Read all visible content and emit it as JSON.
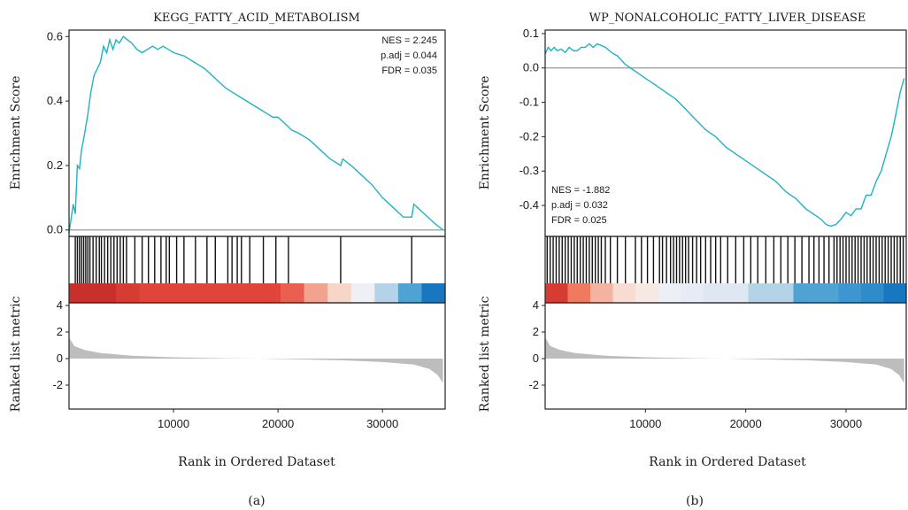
{
  "captions": [
    "(a)",
    "(b)"
  ],
  "colors": {
    "es_line": "#1fb2c4",
    "zero_line": "#9a9a9a",
    "frame": "#222222",
    "hit": "#111111",
    "metric_fill": "#bdbdbd"
  },
  "chart_data": [
    {
      "type": "line",
      "title": "KEGG_FATTY_ACID_METABOLISM",
      "xlabel": "Rank in Ordered Dataset",
      "ylabel": "Enrichment Score",
      "ylabel2": "Ranked list metric",
      "xlim": [
        0,
        36000
      ],
      "ylim": [
        -0.02,
        0.62
      ],
      "yticks": [
        0.0,
        0.2,
        0.4,
        0.6
      ],
      "ytick_labels": [
        "0.0",
        "0.2",
        "0.4",
        "0.6"
      ],
      "xticks": [
        10000,
        20000,
        30000
      ],
      "xtick_labels": [
        "10000",
        "20000",
        "30000"
      ],
      "metric_ylim": [
        -3.8,
        4.2
      ],
      "metric_yticks": [
        4,
        2,
        0,
        -2
      ],
      "metric_ytick_labels": [
        "4",
        "2",
        "0",
        "-2"
      ],
      "stats": [
        "NES = 2.245",
        "p.adj = 0.044",
        "FDR = 0.035"
      ],
      "stats_position": "top-right",
      "grid": false,
      "x": [
        0,
        400,
        600,
        800,
        1000,
        1200,
        1500,
        1800,
        2100,
        2400,
        2700,
        3000,
        3300,
        3600,
        3900,
        4200,
        4500,
        4800,
        5200,
        5600,
        6000,
        6500,
        7000,
        7500,
        8000,
        8500,
        9000,
        9500,
        10000,
        11000,
        12000,
        13000,
        14000,
        15000,
        15500,
        16000,
        16500,
        17000,
        18000,
        19000,
        19500,
        20000,
        21000,
        21300,
        22000,
        23000,
        24000,
        25000,
        26000,
        26200,
        27000,
        28000,
        29000,
        30000,
        31000,
        32000,
        32800,
        33000,
        34000,
        35000,
        35800
      ],
      "y": [
        -0.01,
        0.08,
        0.05,
        0.2,
        0.19,
        0.25,
        0.3,
        0.36,
        0.43,
        0.48,
        0.5,
        0.52,
        0.57,
        0.55,
        0.59,
        0.56,
        0.59,
        0.58,
        0.6,
        0.59,
        0.58,
        0.56,
        0.55,
        0.56,
        0.57,
        0.56,
        0.57,
        0.56,
        0.55,
        0.54,
        0.52,
        0.5,
        0.47,
        0.44,
        0.43,
        0.42,
        0.41,
        0.4,
        0.38,
        0.36,
        0.35,
        0.35,
        0.32,
        0.31,
        0.3,
        0.28,
        0.25,
        0.22,
        0.2,
        0.22,
        0.2,
        0.17,
        0.14,
        0.1,
        0.07,
        0.04,
        0.04,
        0.08,
        0.05,
        0.02,
        0.0
      ],
      "hit_positions": [
        600,
        800,
        1000,
        1200,
        1400,
        1600,
        1800,
        2000,
        2300,
        2600,
        2900,
        3100,
        3400,
        3700,
        4000,
        4300,
        4600,
        4900,
        5200,
        5500,
        6300,
        7000,
        7600,
        8200,
        8800,
        9300,
        9600,
        10300,
        11000,
        12100,
        13200,
        14000,
        15200,
        15600,
        16100,
        16500,
        17300,
        18600,
        19800,
        21000,
        26000,
        32800
      ],
      "color_band": [
        "#c9302c",
        "#c9302c",
        "#d73c33",
        "#e0443b",
        "#e0443b",
        "#e0443b",
        "#e0443b",
        "#e0443b",
        "#e0443b",
        "#ea6050",
        "#f2a390",
        "#f7d6ca",
        "#eef0f6",
        "#b5d3e6",
        "#4fa3d3",
        "#1877bf"
      ],
      "metric_curve": [
        [
          0,
          1.6
        ],
        [
          500,
          0.95
        ],
        [
          1500,
          0.65
        ],
        [
          3000,
          0.42
        ],
        [
          6000,
          0.22
        ],
        [
          10000,
          0.1
        ],
        [
          15000,
          0.03
        ],
        [
          18000,
          0.0
        ],
        [
          22000,
          -0.06
        ],
        [
          26000,
          -0.13
        ],
        [
          30000,
          -0.26
        ],
        [
          33000,
          -0.45
        ],
        [
          34500,
          -0.78
        ],
        [
          35300,
          -1.25
        ],
        [
          35800,
          -1.85
        ]
      ]
    },
    {
      "type": "line",
      "title": "WP_NONALCOHOLIC_FATTY_LIVER_DISEASE",
      "xlabel": "Rank in Ordered Dataset",
      "ylabel": "Enrichment Score",
      "ylabel2": "Ranked list metric",
      "xlim": [
        0,
        36000
      ],
      "ylim": [
        -0.49,
        0.11
      ],
      "yticks": [
        0.1,
        0.0,
        -0.1,
        -0.2,
        -0.3,
        -0.4
      ],
      "ytick_labels": [
        "0.1",
        "0.0",
        "-0.1",
        "-0.2",
        "-0.3",
        "-0.4"
      ],
      "xticks": [
        10000,
        20000,
        30000
      ],
      "xtick_labels": [
        "10000",
        "20000",
        "30000"
      ],
      "metric_ylim": [
        -3.8,
        4.2
      ],
      "metric_yticks": [
        4,
        2,
        0,
        -2
      ],
      "metric_ytick_labels": [
        "4",
        "2",
        "0",
        "-2"
      ],
      "stats": [
        "NES = -1.882",
        "p.adj = 0.032",
        "FDR = 0.025"
      ],
      "stats_position": "bottom-left",
      "grid": false,
      "x": [
        0,
        300,
        600,
        900,
        1200,
        1600,
        2000,
        2400,
        2800,
        3200,
        3600,
        4000,
        4400,
        4800,
        5200,
        5600,
        6000,
        6600,
        7200,
        8000,
        9000,
        10000,
        11000,
        12000,
        13000,
        14000,
        15000,
        16000,
        17000,
        18000,
        19000,
        20000,
        21000,
        22000,
        23000,
        24000,
        25000,
        26000,
        27000,
        27500,
        28000,
        28500,
        29000,
        29500,
        30000,
        30500,
        31000,
        31500,
        32000,
        32500,
        33000,
        33500,
        34000,
        34500,
        35000,
        35400,
        35800
      ],
      "y": [
        0.04,
        0.06,
        0.05,
        0.06,
        0.05,
        0.055,
        0.045,
        0.06,
        0.05,
        0.05,
        0.06,
        0.06,
        0.07,
        0.06,
        0.07,
        0.065,
        0.06,
        0.045,
        0.035,
        0.01,
        -0.01,
        -0.03,
        -0.05,
        -0.07,
        -0.09,
        -0.12,
        -0.15,
        -0.18,
        -0.2,
        -0.23,
        -0.25,
        -0.27,
        -0.29,
        -0.31,
        -0.33,
        -0.36,
        -0.38,
        -0.41,
        -0.43,
        -0.44,
        -0.455,
        -0.46,
        -0.455,
        -0.44,
        -0.42,
        -0.43,
        -0.41,
        -0.41,
        -0.37,
        -0.37,
        -0.33,
        -0.3,
        -0.25,
        -0.2,
        -0.13,
        -0.07,
        -0.03
      ],
      "hit_positions": [
        200,
        500,
        800,
        1100,
        1400,
        1700,
        2000,
        2300,
        2600,
        2900,
        3200,
        3500,
        3800,
        4100,
        4400,
        4700,
        5000,
        5300,
        5600,
        6000,
        6500,
        7200,
        8000,
        9000,
        9600,
        10200,
        10800,
        11400,
        11700,
        12100,
        12500,
        12800,
        13100,
        13400,
        13700,
        14000,
        14300,
        14700,
        15100,
        15500,
        16000,
        16500,
        17000,
        17500,
        18200,
        19000,
        19800,
        20500,
        21200,
        22000,
        22800,
        23500,
        24200,
        24900,
        25600,
        26300,
        26800,
        27300,
        27800,
        28300,
        28800,
        29100,
        29400,
        29700,
        30000,
        30300,
        30600,
        30900,
        31200,
        31500,
        31800,
        32100,
        32400,
        32700,
        33000,
        33300,
        33600,
        33900,
        34200,
        34500,
        34800,
        35100,
        35400,
        35700
      ],
      "color_band": [
        "#d73c33",
        "#f07a60",
        "#f4b3a0",
        "#f8dcd2",
        "#f6e8e3",
        "#eceff6",
        "#e6ebf4",
        "#dfe8f2",
        "#dfe8f2",
        "#b5d3e6",
        "#b5d3e6",
        "#4fa3d3",
        "#4fa3d3",
        "#3d96cf",
        "#2f8bc9",
        "#1877bf"
      ],
      "metric_curve": [
        [
          0,
          1.6
        ],
        [
          500,
          0.95
        ],
        [
          1500,
          0.65
        ],
        [
          3000,
          0.42
        ],
        [
          6000,
          0.22
        ],
        [
          10000,
          0.1
        ],
        [
          15000,
          0.03
        ],
        [
          18000,
          0.0
        ],
        [
          22000,
          -0.06
        ],
        [
          26000,
          -0.13
        ],
        [
          30000,
          -0.26
        ],
        [
          33000,
          -0.45
        ],
        [
          34500,
          -0.78
        ],
        [
          35300,
          -1.25
        ],
        [
          35800,
          -1.85
        ]
      ]
    }
  ]
}
